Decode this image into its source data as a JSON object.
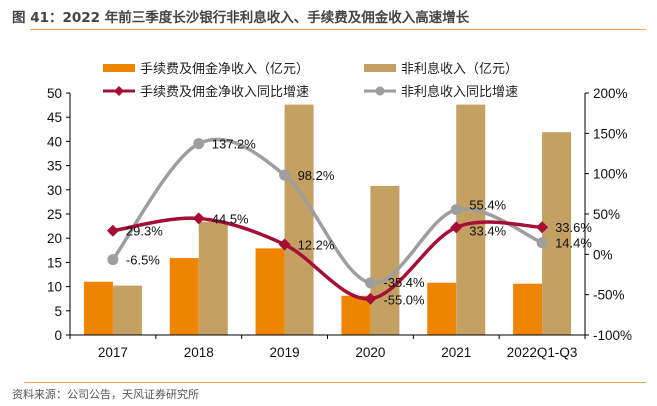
{
  "title": "图 41：2022 年前三季度长沙银行非利息收入、手续费及佣金收入高速增长",
  "source": "资料来源：公司公告，天风证券研究所",
  "colors": {
    "fee_bar": "#ee8400",
    "nonint_bar": "#c4a063",
    "fee_line": "#a50f36",
    "nonint_line": "#9e9e9e",
    "rule": "#f0a050"
  },
  "chart_data": {
    "type": "bar",
    "title": "2022 年前三季度长沙银行非利息收入、手续费及佣金收入高速增长",
    "categories": [
      "2017",
      "2018",
      "2019",
      "2020",
      "2021",
      "2022Q1-Q3"
    ],
    "series": [
      {
        "name": "手续费及佣金净收入（亿元）",
        "type": "bar",
        "axis": "left",
        "values": [
          11.0,
          15.9,
          17.9,
          8.1,
          10.8,
          10.6
        ]
      },
      {
        "name": "非利息收入（亿元）",
        "type": "bar",
        "axis": "left",
        "values": [
          10.2,
          23.4,
          47.6,
          30.8,
          47.6,
          41.9
        ]
      },
      {
        "name": "手续费及佣金净收入同比增速",
        "type": "line",
        "axis": "right",
        "marker": "diamond",
        "values": [
          29.3,
          44.5,
          12.2,
          -55.0,
          33.4,
          33.6
        ],
        "labels": [
          "29.3%",
          "44.5%",
          "12.2%",
          "-55.0%",
          "33.4%",
          "33.6%"
        ]
      },
      {
        "name": "非利息收入同比增速",
        "type": "line",
        "axis": "right",
        "marker": "circle",
        "values": [
          -6.5,
          137.2,
          98.2,
          -35.4,
          55.4,
          14.4
        ],
        "labels": [
          "-6.5%",
          "137.2%",
          "98.2%",
          "-35.4%",
          "55.4%",
          "14.4%"
        ]
      }
    ],
    "left_axis": {
      "ylim": [
        0,
        50
      ],
      "ticks": [
        "0",
        "5",
        "10",
        "15",
        "20",
        "25",
        "30",
        "35",
        "40",
        "45",
        "50"
      ]
    },
    "right_axis": {
      "ylim": [
        -100,
        200
      ],
      "ticks": [
        "-100%",
        "-50%",
        "0%",
        "50%",
        "100%",
        "150%",
        "200%"
      ]
    },
    "xlabel": "",
    "ylabel": "",
    "grid": false,
    "legend_position": "top"
  }
}
